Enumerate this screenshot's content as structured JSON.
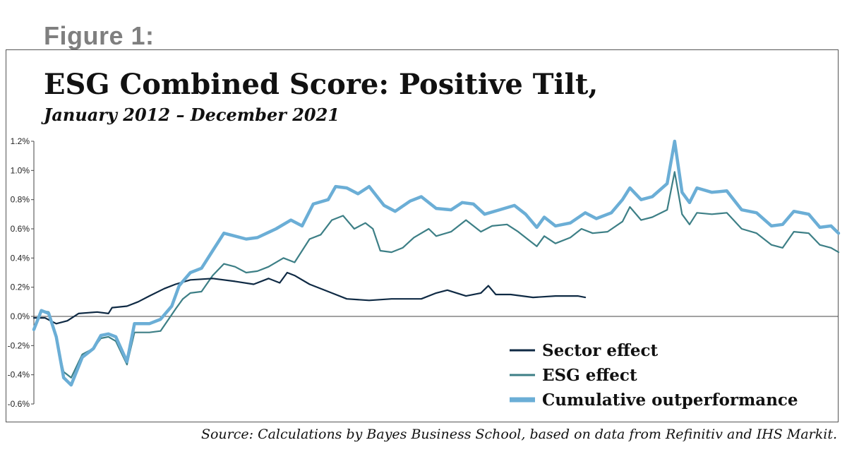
{
  "figure_label": "Figure 1:",
  "source_note": "Source: Calculations by Bayes Business School, based on data from Refinitiv and IHS Markit.",
  "colors": {
    "sector": "#0f2a44",
    "esg": "#3d7f86",
    "cumulative": "#6baed6",
    "axis": "#444444"
  },
  "chart_data": {
    "type": "line",
    "title": "ESG Combined Score: Positive Tilt,",
    "subtitle": "January 2012 – December 2021",
    "xlabel": "",
    "ylabel": "",
    "ylim": [
      -0.6,
      1.2
    ],
    "yticks": [
      -0.6,
      -0.4,
      -0.2,
      0.0,
      0.2,
      0.4,
      0.6,
      0.8,
      1.0,
      1.2
    ],
    "ytick_labels": [
      "-0.6%",
      "-0.4%",
      "-0.2%",
      "0.0%",
      "0.2%",
      "0.4%",
      "0.6%",
      "0.8%",
      "1.0%",
      "1.2%"
    ],
    "x_start": "2012-01",
    "x_end": "2021-12",
    "grid": false,
    "legend_position": "bottom-right",
    "series": [
      {
        "name": "Sector effect",
        "color_key": "sector",
        "knots": [
          [
            "2012-01",
            -0.01
          ],
          [
            "2012-04",
            -0.01
          ],
          [
            "2012-07",
            -0.05
          ],
          [
            "2012-10",
            -0.03
          ],
          [
            "2013-01",
            0.02
          ],
          [
            "2013-06",
            0.03
          ],
          [
            "2013-09",
            0.02
          ],
          [
            "2013-10",
            0.06
          ],
          [
            "2014-02",
            0.07
          ],
          [
            "2014-05",
            0.1
          ],
          [
            "2014-08",
            0.14
          ],
          [
            "2014-12",
            0.19
          ],
          [
            "2015-03",
            0.22
          ],
          [
            "2015-07",
            0.25
          ],
          [
            "2016-01",
            0.26
          ],
          [
            "2016-07",
            0.24
          ],
          [
            "2016-12",
            0.22
          ],
          [
            "2017-04",
            0.26
          ],
          [
            "2017-07",
            0.23
          ],
          [
            "2017-09",
            0.3
          ],
          [
            "2017-11",
            0.28
          ],
          [
            "2018-03",
            0.22
          ],
          [
            "2018-09",
            0.16
          ],
          [
            "2019-01",
            0.12
          ],
          [
            "2019-07",
            0.11
          ],
          [
            "2020-01",
            0.12
          ],
          [
            "2020-09",
            0.12
          ],
          [
            "2021-01",
            0.16
          ],
          [
            "2021-04",
            0.18
          ],
          [
            "2021-09",
            0.14
          ],
          [
            "2022-01",
            0.16
          ],
          [
            "2022-03",
            0.21
          ],
          [
            "2022-05",
            0.15
          ],
          [
            "2022-09",
            0.15
          ],
          [
            "2023-03",
            0.13
          ],
          [
            "2023-09",
            0.14
          ],
          [
            "2024-03",
            0.14
          ],
          [
            "2024-05",
            0.13
          ]
        ]
      },
      {
        "name": "ESG effect",
        "color_key": "esg",
        "knots": [
          [
            "2012-01",
            -0.08
          ],
          [
            "2012-03",
            0.04
          ],
          [
            "2012-05",
            0.03
          ],
          [
            "2012-07",
            -0.15
          ],
          [
            "2012-09",
            -0.38
          ],
          [
            "2012-11",
            -0.42
          ],
          [
            "2013-02",
            -0.26
          ],
          [
            "2013-05",
            -0.22
          ],
          [
            "2013-07",
            -0.15
          ],
          [
            "2013-09",
            -0.14
          ],
          [
            "2013-11",
            -0.17
          ],
          [
            "2014-02",
            -0.33
          ],
          [
            "2014-04",
            -0.11
          ],
          [
            "2014-08",
            -0.11
          ],
          [
            "2014-11",
            -0.1
          ],
          [
            "2015-03",
            0.05
          ],
          [
            "2015-05",
            0.12
          ],
          [
            "2015-07",
            0.16
          ],
          [
            "2015-10",
            0.17
          ],
          [
            "2016-01",
            0.28
          ],
          [
            "2016-04",
            0.36
          ],
          [
            "2016-07",
            0.34
          ],
          [
            "2016-10",
            0.3
          ],
          [
            "2017-01",
            0.31
          ],
          [
            "2017-04",
            0.34
          ],
          [
            "2017-08",
            0.4
          ],
          [
            "2017-11",
            0.37
          ],
          [
            "2018-03",
            0.53
          ],
          [
            "2018-06",
            0.56
          ],
          [
            "2018-09",
            0.66
          ],
          [
            "2018-12",
            0.69
          ],
          [
            "2019-03",
            0.6
          ],
          [
            "2019-06",
            0.64
          ],
          [
            "2019-08",
            0.6
          ],
          [
            "2019-10",
            0.45
          ],
          [
            "2020-01",
            0.44
          ],
          [
            "2020-04",
            0.47
          ],
          [
            "2020-07",
            0.54
          ],
          [
            "2020-11",
            0.6
          ],
          [
            "2021-01",
            0.55
          ],
          [
            "2021-05",
            0.58
          ],
          [
            "2021-09",
            0.66
          ],
          [
            "2022-01",
            0.58
          ],
          [
            "2022-04",
            0.62
          ],
          [
            "2022-08",
            0.63
          ],
          [
            "2022-11",
            0.58
          ],
          [
            "2023-02",
            0.52
          ],
          [
            "2023-04",
            0.48
          ],
          [
            "2023-06",
            0.55
          ],
          [
            "2023-09",
            0.5
          ],
          [
            "2024-01",
            0.54
          ],
          [
            "2024-04",
            0.6
          ],
          [
            "2024-07",
            0.57
          ],
          [
            "2024-11",
            0.58
          ],
          [
            "2025-03",
            0.65
          ],
          [
            "2025-05",
            0.75
          ],
          [
            "2025-08",
            0.66
          ],
          [
            "2025-11",
            0.68
          ],
          [
            "2026-03",
            0.73
          ],
          [
            "2026-05",
            0.99
          ],
          [
            "2026-07",
            0.7
          ],
          [
            "2026-09",
            0.63
          ],
          [
            "2026-11",
            0.71
          ],
          [
            "2027-03",
            0.7
          ],
          [
            "2027-07",
            0.71
          ],
          [
            "2027-11",
            0.6
          ],
          [
            "2028-03",
            0.57
          ],
          [
            "2028-07",
            0.49
          ],
          [
            "2028-10",
            0.47
          ],
          [
            "2029-01",
            0.58
          ],
          [
            "2029-05",
            0.57
          ],
          [
            "2029-08",
            0.49
          ],
          [
            "2029-11",
            0.47
          ],
          [
            "2030-01",
            0.44
          ]
        ]
      },
      {
        "name": "Cumulative outperformance",
        "color_key": "cumulative",
        "knots": [
          [
            "2012-01",
            -0.09
          ],
          [
            "2012-03",
            0.04
          ],
          [
            "2012-05",
            0.02
          ],
          [
            "2012-07",
            -0.14
          ],
          [
            "2012-09",
            -0.42
          ],
          [
            "2012-11",
            -0.47
          ],
          [
            "2013-02",
            -0.28
          ],
          [
            "2013-05",
            -0.22
          ],
          [
            "2013-07",
            -0.13
          ],
          [
            "2013-09",
            -0.12
          ],
          [
            "2013-11",
            -0.14
          ],
          [
            "2014-02",
            -0.31
          ],
          [
            "2014-04",
            -0.05
          ],
          [
            "2014-08",
            -0.05
          ],
          [
            "2014-11",
            -0.02
          ],
          [
            "2015-02",
            0.07
          ],
          [
            "2015-04",
            0.21
          ],
          [
            "2015-07",
            0.3
          ],
          [
            "2015-10",
            0.33
          ],
          [
            "2016-01",
            0.45
          ],
          [
            "2016-04",
            0.57
          ],
          [
            "2016-07",
            0.55
          ],
          [
            "2016-10",
            0.53
          ],
          [
            "2017-01",
            0.54
          ],
          [
            "2017-06",
            0.6
          ],
          [
            "2017-10",
            0.66
          ],
          [
            "2018-01",
            0.62
          ],
          [
            "2018-04",
            0.77
          ],
          [
            "2018-08",
            0.8
          ],
          [
            "2018-10",
            0.89
          ],
          [
            "2019-01",
            0.88
          ],
          [
            "2019-04",
            0.84
          ],
          [
            "2019-07",
            0.89
          ],
          [
            "2019-11",
            0.76
          ],
          [
            "2020-02",
            0.72
          ],
          [
            "2020-06",
            0.79
          ],
          [
            "2020-09",
            0.82
          ],
          [
            "2021-01",
            0.74
          ],
          [
            "2021-05",
            0.73
          ],
          [
            "2021-08",
            0.78
          ],
          [
            "2021-11",
            0.77
          ],
          [
            "2022-02",
            0.7
          ],
          [
            "2022-06",
            0.73
          ],
          [
            "2022-10",
            0.76
          ],
          [
            "2023-01",
            0.7
          ],
          [
            "2023-04",
            0.61
          ],
          [
            "2023-06",
            0.68
          ],
          [
            "2023-09",
            0.62
          ],
          [
            "2024-01",
            0.64
          ],
          [
            "2024-05",
            0.71
          ],
          [
            "2024-08",
            0.67
          ],
          [
            "2024-12",
            0.71
          ],
          [
            "2025-03",
            0.8
          ],
          [
            "2025-05",
            0.88
          ],
          [
            "2025-08",
            0.8
          ],
          [
            "2025-11",
            0.82
          ],
          [
            "2026-03",
            0.91
          ],
          [
            "2026-05",
            1.2
          ],
          [
            "2026-07",
            0.85
          ],
          [
            "2026-09",
            0.78
          ],
          [
            "2026-11",
            0.88
          ],
          [
            "2027-03",
            0.85
          ],
          [
            "2027-07",
            0.86
          ],
          [
            "2027-11",
            0.73
          ],
          [
            "2028-03",
            0.71
          ],
          [
            "2028-07",
            0.62
          ],
          [
            "2028-10",
            0.63
          ],
          [
            "2029-01",
            0.72
          ],
          [
            "2029-05",
            0.7
          ],
          [
            "2029-08",
            0.61
          ],
          [
            "2029-11",
            0.62
          ],
          [
            "2030-01",
            0.57
          ]
        ]
      }
    ]
  }
}
